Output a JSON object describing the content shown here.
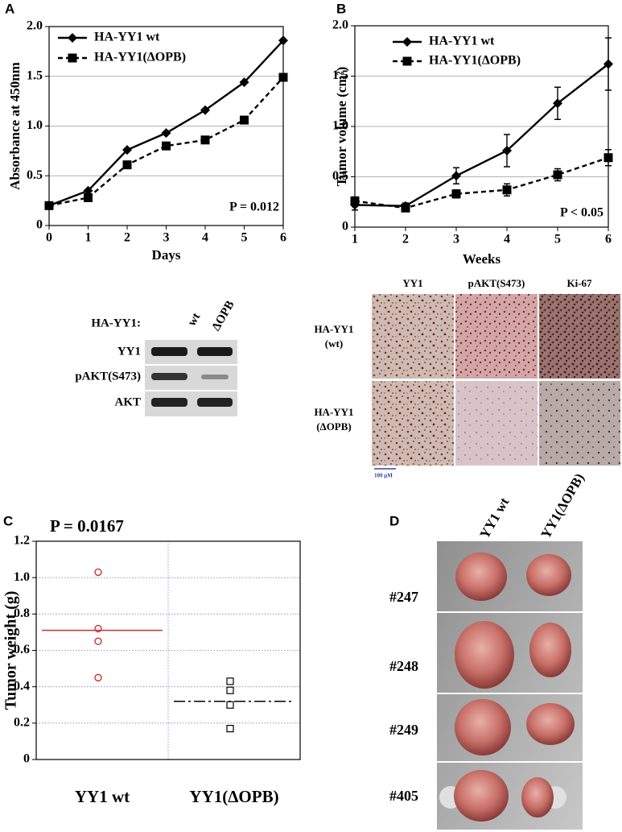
{
  "panels": [
    "A",
    "B",
    "C",
    "D"
  ],
  "chart_data": [
    {
      "type": "line",
      "xlabel": "Days",
      "ylabel": "Absorbance at 450nm",
      "annotation": "P = 0.012",
      "x": [
        0,
        1,
        2,
        3,
        4,
        5,
        6
      ],
      "xlim": [
        0,
        6
      ],
      "xticks": [
        0,
        1,
        2,
        3,
        4,
        5,
        6
      ],
      "ylim": [
        0,
        2
      ],
      "yticks": [
        0,
        0.5,
        {
          "value": 1,
          "label": "1.0"
        },
        1.5,
        {
          "value": 2,
          "label": "2.0"
        }
      ],
      "grid": true,
      "legend": "top-left",
      "series": [
        {
          "name": "HA-YY1 wt",
          "color": "#000000",
          "marker": "diamond",
          "dash": "solid",
          "values": [
            0.2,
            0.35,
            0.76,
            0.93,
            1.16,
            1.44,
            1.86
          ]
        },
        {
          "name": "HA-YY1(ΔOPB)",
          "color": "#000000",
          "marker": "square",
          "dash": "dashed",
          "values": [
            0.2,
            0.28,
            0.61,
            0.8,
            0.86,
            1.06,
            1.49
          ]
        }
      ]
    },
    {
      "type": "line",
      "xlabel": "Weeks",
      "ylabel": "Tumor volume (cm²)",
      "annotation": "P < 0.05",
      "x": [
        1,
        2,
        3,
        4,
        5,
        6
      ],
      "xlim": [
        1,
        6
      ],
      "xticks": [
        1,
        2,
        3,
        4,
        5,
        6
      ],
      "ylim": [
        0,
        2
      ],
      "yticks": [
        0,
        0.5,
        {
          "value": 1,
          "label": "1.0"
        },
        1.5,
        {
          "value": 2,
          "label": "2.0"
        }
      ],
      "grid": true,
      "legend": "top-left",
      "series": [
        {
          "name": "HA-YY1 wt",
          "color": "#000000",
          "marker": "diamond",
          "dash": "solid",
          "values": [
            0.22,
            0.21,
            0.51,
            0.76,
            1.23,
            1.62
          ],
          "errors": [
            0.05,
            0.03,
            0.08,
            0.16,
            0.16,
            0.26
          ]
        },
        {
          "name": "HA-YY1(ΔOPB)",
          "color": "#000000",
          "marker": "square",
          "dash": "dashed",
          "values": [
            0.26,
            0.19,
            0.33,
            0.37,
            0.52,
            0.69
          ],
          "errors": [
            0.04,
            0.02,
            0.04,
            0.06,
            0.06,
            0.08
          ]
        }
      ]
    },
    {
      "type": "strip",
      "ylabel": "Tumor weight (g)",
      "annotation": "P = 0.0167",
      "categories": [
        "YY1 wt",
        "YY1(ΔOPB)"
      ],
      "ylim": [
        0,
        1.2
      ],
      "yticks": [
        0,
        0.2,
        0.4,
        0.6,
        0.8,
        {
          "value": 1,
          "label": "1.0"
        },
        1.2
      ],
      "grid": true,
      "values": [
        [
          1.03,
          0.72,
          0.65,
          0.45
        ],
        [
          0.43,
          0.38,
          0.3,
          0.17
        ]
      ],
      "means": [
        0.71,
        0.32
      ],
      "colors": [
        "#d03030",
        "#000000"
      ],
      "markers": [
        "circle",
        "square"
      ]
    }
  ],
  "western_blot": {
    "header": "HA-YY1:",
    "lanes": [
      "wt",
      "ΔOPB"
    ],
    "rows": [
      "YY1",
      "pAKT(S473)",
      "AKT"
    ]
  },
  "histology": {
    "columns": [
      "YY1",
      "pAKT(S473)",
      "Ki-67"
    ],
    "rows": [
      [
        "HA-YY1",
        "(wt)"
      ],
      [
        "HA-YY1",
        "(ΔOPB)"
      ]
    ],
    "scale": "100 μM"
  },
  "photos": {
    "columns": [
      "YY1 wt",
      "YY1(ΔOPB)"
    ],
    "rows": [
      "#247",
      "#248",
      "#249",
      "#405"
    ]
  }
}
